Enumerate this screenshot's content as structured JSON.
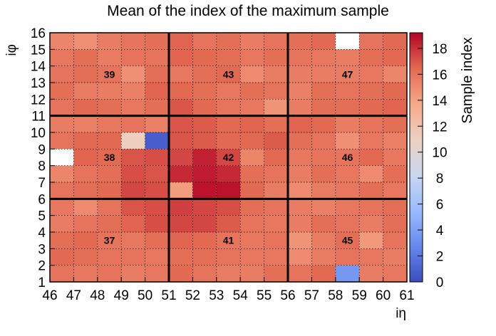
{
  "chart_data": {
    "type": "heatmap",
    "title": "Mean of the index of the maximum sample",
    "xlabel": "iη",
    "ylabel": "iφ",
    "colorbar_label": "Sample index",
    "x_edges": [
      46,
      47,
      48,
      49,
      50,
      51,
      52,
      53,
      54,
      55,
      56,
      57,
      58,
      59,
      60,
      61
    ],
    "y_edges": [
      1,
      2,
      3,
      4,
      5,
      6,
      7,
      8,
      9,
      10,
      11,
      12,
      13,
      14,
      15,
      16
    ],
    "x_tick_labels": [
      "46",
      "47",
      "48",
      "49",
      "50",
      "51",
      "52",
      "53",
      "54",
      "55",
      "56",
      "57",
      "58",
      "59",
      "60",
      "61"
    ],
    "y_tick_labels": [
      "1",
      "2",
      "3",
      "4",
      "5",
      "6",
      "7",
      "8",
      "9",
      "10",
      "11",
      "12",
      "13",
      "14",
      "15",
      "16"
    ],
    "zlim": [
      0,
      19.2
    ],
    "colorbar_ticks": [
      0,
      2,
      4,
      6,
      8,
      10,
      12,
      14,
      16,
      18
    ],
    "colormap": [
      "#3b4cc0",
      "#6688ee",
      "#9abbff",
      "#c9d7f0",
      "#edd1c2",
      "#f7a889",
      "#e26952",
      "#b40426"
    ],
    "grid": "dotted",
    "rows_top_to_bottom": [
      [
        15.2,
        14.8,
        15.6,
        16.0,
        16.2,
        16.6,
        16.0,
        16.2,
        15.6,
        16.0,
        16.2,
        16.4,
        null,
        16.0,
        16.4
      ],
      [
        15.8,
        16.2,
        15.6,
        16.0,
        16.0,
        16.6,
        16.4,
        16.2,
        15.8,
        16.2,
        16.0,
        15.8,
        15.6,
        16.2,
        16.4
      ],
      [
        16.0,
        16.2,
        16.0,
        14.8,
        16.2,
        15.8,
        16.2,
        16.4,
        15.0,
        15.6,
        15.6,
        15.6,
        15.6,
        15.8,
        15.2
      ],
      [
        16.2,
        15.6,
        15.6,
        15.4,
        16.6,
        16.4,
        16.2,
        15.8,
        16.2,
        16.0,
        15.4,
        16.2,
        16.0,
        16.2,
        16.4
      ],
      [
        16.0,
        16.4,
        16.2,
        15.8,
        16.2,
        17.0,
        16.4,
        16.0,
        15.8,
        14.6,
        15.6,
        16.2,
        16.2,
        16.4,
        16.6
      ],
      [
        15.6,
        15.4,
        15.8,
        16.0,
        15.4,
        17.0,
        16.8,
        16.4,
        16.6,
        16.2,
        16.6,
        16.4,
        15.6,
        16.0,
        16.2
      ],
      [
        16.0,
        16.4,
        16.4,
        11.2,
        0.8,
        17.0,
        16.8,
        16.4,
        16.4,
        16.8,
        16.2,
        16.0,
        14.8,
        15.8,
        15.4
      ],
      [
        null,
        16.6,
        16.4,
        17.0,
        17.2,
        17.4,
        18.4,
        17.4,
        15.2,
        16.4,
        15.8,
        16.0,
        16.0,
        16.4,
        15.8
      ],
      [
        15.2,
        16.0,
        16.2,
        17.2,
        17.0,
        18.2,
        18.6,
        18.2,
        16.2,
        16.0,
        15.6,
        16.2,
        15.8,
        15.0,
        16.2
      ],
      [
        16.0,
        16.2,
        16.4,
        17.4,
        17.2,
        14.2,
        18.8,
        18.8,
        16.4,
        15.6,
        15.0,
        15.6,
        15.8,
        16.2,
        15.8
      ],
      [
        15.8,
        15.0,
        16.0,
        17.0,
        17.2,
        17.6,
        17.4,
        17.2,
        16.2,
        16.0,
        15.6,
        15.4,
        15.8,
        16.0,
        16.2
      ],
      [
        15.6,
        16.0,
        16.2,
        16.6,
        17.2,
        17.4,
        17.4,
        16.8,
        16.0,
        15.8,
        15.6,
        16.2,
        16.0,
        15.6,
        16.2
      ],
      [
        16.2,
        16.4,
        16.0,
        15.8,
        16.2,
        16.6,
        16.4,
        16.0,
        15.8,
        16.0,
        14.6,
        15.6,
        16.2,
        14.4,
        16.0
      ],
      [
        16.4,
        16.2,
        16.0,
        16.0,
        15.8,
        16.2,
        16.2,
        16.0,
        15.8,
        15.8,
        15.0,
        15.6,
        16.0,
        15.8,
        15.6
      ],
      [
        16.0,
        15.8,
        16.0,
        15.6,
        15.8,
        16.4,
        16.0,
        15.6,
        15.6,
        16.2,
        16.0,
        16.4,
        3.6,
        15.6,
        15.8
      ]
    ],
    "tower_labels": [
      {
        "text": "39",
        "x": 48.5,
        "y": 13.5
      },
      {
        "text": "43",
        "x": 53.5,
        "y": 13.5
      },
      {
        "text": "47",
        "x": 58.5,
        "y": 13.5
      },
      {
        "text": "38",
        "x": 48.5,
        "y": 8.5
      },
      {
        "text": "42",
        "x": 53.5,
        "y": 8.5
      },
      {
        "text": "46",
        "x": 58.5,
        "y": 8.5
      },
      {
        "text": "37",
        "x": 48.5,
        "y": 3.5
      },
      {
        "text": "41",
        "x": 53.5,
        "y": 3.5
      },
      {
        "text": "45",
        "x": 58.5,
        "y": 3.5
      }
    ],
    "tower_boundaries_x": [
      51,
      56
    ],
    "tower_boundaries_y": [
      6,
      11
    ]
  }
}
